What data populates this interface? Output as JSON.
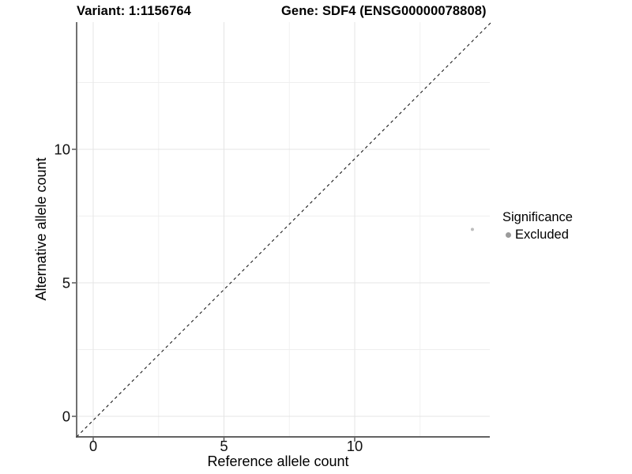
{
  "figure": {
    "title_variant": "Variant: 1:1156764",
    "title_gene": "Gene: SDF4 (ENSG00000078808)"
  },
  "chart_data": {
    "type": "scatter",
    "title": "Variant: 1:1156764        Gene: SDF4 (ENSG00000078808)",
    "xlabel": "Reference allele count",
    "ylabel": "Alternative allele count",
    "x_ticks": [
      0,
      5,
      10
    ],
    "y_ticks": [
      0,
      5,
      10
    ],
    "x_minor_ticks": [
      2.5,
      7.5,
      12.5
    ],
    "y_minor_ticks": [
      2.5,
      7.5,
      12.5
    ],
    "xlim": [
      -0.65,
      15.2
    ],
    "ylim": [
      -0.75,
      14.8
    ],
    "grid": true,
    "reference_line": {
      "description": "identity line y = x",
      "slope": 1,
      "intercept": 0,
      "style": "dashed",
      "color": "#1a1a1a"
    },
    "series": [
      {
        "name": "Excluded",
        "color": "#bdbdbd",
        "points": [
          {
            "x": 14.5,
            "y": 7
          }
        ]
      }
    ],
    "legend": {
      "title": "Significance",
      "position": "right",
      "items": [
        {
          "label": "Excluded",
          "color": "#9b9b9b"
        }
      ]
    },
    "colors": {
      "axis_line": "#4d4d4d",
      "grid_major": "#e4e4e4",
      "grid_minor": "#efefef",
      "tick": "#4d4d4d",
      "text": "#111111"
    }
  }
}
